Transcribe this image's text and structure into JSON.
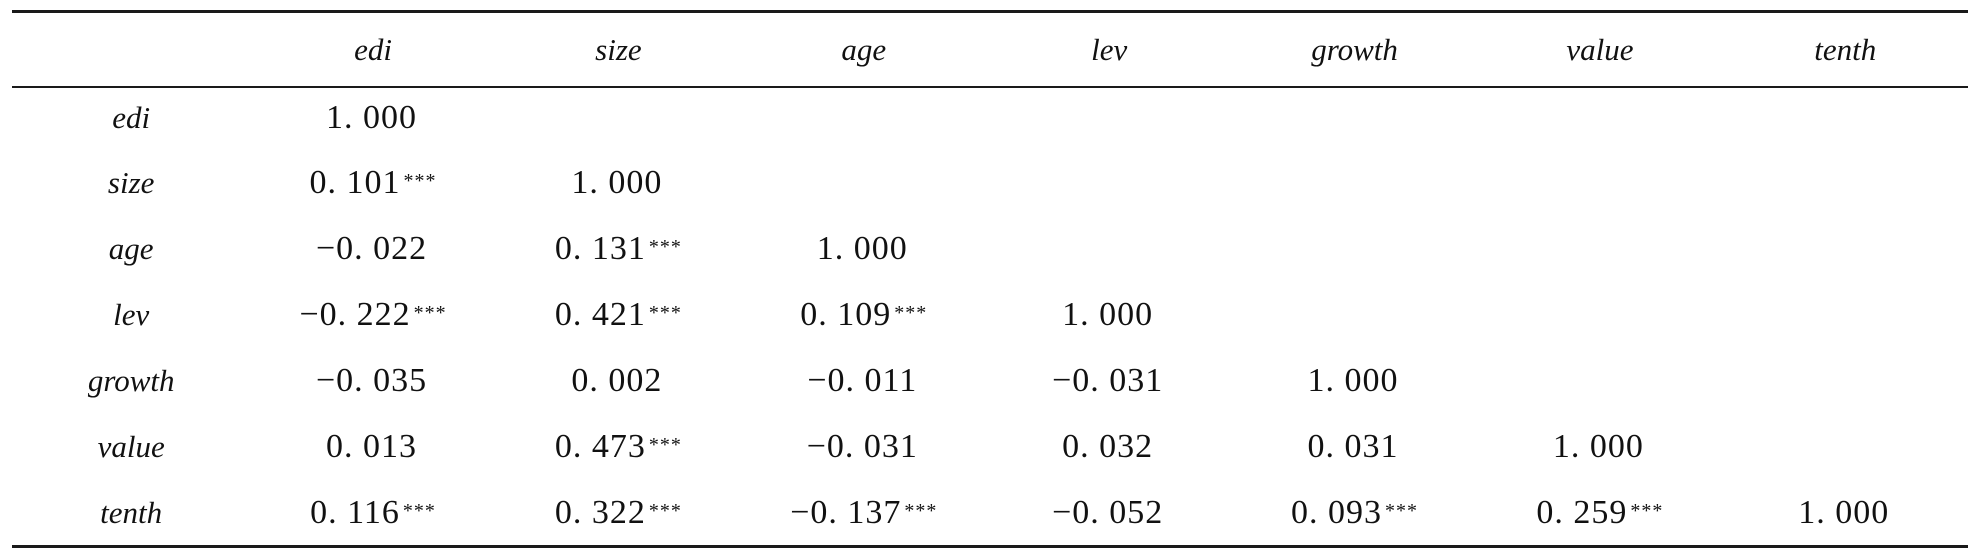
{
  "table": {
    "columns": [
      "",
      "edi",
      "size",
      "age",
      "lev",
      "growth",
      "value",
      "tenth"
    ],
    "rows": [
      {
        "label": "edi",
        "cells": [
          {
            "v": "1. 000",
            "s": ""
          },
          {
            "v": "",
            "s": ""
          },
          {
            "v": "",
            "s": ""
          },
          {
            "v": "",
            "s": ""
          },
          {
            "v": "",
            "s": ""
          },
          {
            "v": "",
            "s": ""
          },
          {
            "v": "",
            "s": ""
          }
        ]
      },
      {
        "label": "size",
        "cells": [
          {
            "v": "0. 101",
            "s": "***"
          },
          {
            "v": "1. 000",
            "s": ""
          },
          {
            "v": "",
            "s": ""
          },
          {
            "v": "",
            "s": ""
          },
          {
            "v": "",
            "s": ""
          },
          {
            "v": "",
            "s": ""
          },
          {
            "v": "",
            "s": ""
          }
        ]
      },
      {
        "label": "age",
        "cells": [
          {
            "v": "−0. 022",
            "s": ""
          },
          {
            "v": "0. 131",
            "s": "***"
          },
          {
            "v": "1. 000",
            "s": ""
          },
          {
            "v": "",
            "s": ""
          },
          {
            "v": "",
            "s": ""
          },
          {
            "v": "",
            "s": ""
          },
          {
            "v": "",
            "s": ""
          }
        ]
      },
      {
        "label": "lev",
        "cells": [
          {
            "v": "−0. 222",
            "s": "***"
          },
          {
            "v": "0. 421",
            "s": "***"
          },
          {
            "v": "0. 109",
            "s": "***"
          },
          {
            "v": "1. 000",
            "s": ""
          },
          {
            "v": "",
            "s": ""
          },
          {
            "v": "",
            "s": ""
          },
          {
            "v": "",
            "s": ""
          }
        ]
      },
      {
        "label": "growth",
        "cells": [
          {
            "v": "−0. 035",
            "s": ""
          },
          {
            "v": "0. 002",
            "s": ""
          },
          {
            "v": "−0. 011",
            "s": ""
          },
          {
            "v": "−0. 031",
            "s": ""
          },
          {
            "v": "1. 000",
            "s": ""
          },
          {
            "v": "",
            "s": ""
          },
          {
            "v": "",
            "s": ""
          }
        ]
      },
      {
        "label": "value",
        "cells": [
          {
            "v": "0. 013",
            "s": ""
          },
          {
            "v": "0. 473",
            "s": "***"
          },
          {
            "v": "−0. 031",
            "s": ""
          },
          {
            "v": "0. 032",
            "s": ""
          },
          {
            "v": "0. 031",
            "s": ""
          },
          {
            "v": "1. 000",
            "s": ""
          },
          {
            "v": "",
            "s": ""
          }
        ]
      },
      {
        "label": "tenth",
        "cells": [
          {
            "v": "0. 116",
            "s": "***"
          },
          {
            "v": "0. 322",
            "s": "***"
          },
          {
            "v": "−0. 137",
            "s": "***"
          },
          {
            "v": "−0. 052",
            "s": ""
          },
          {
            "v": "0. 093",
            "s": "***"
          },
          {
            "v": "0. 259",
            "s": "***"
          },
          {
            "v": "1. 000",
            "s": ""
          }
        ]
      }
    ]
  }
}
